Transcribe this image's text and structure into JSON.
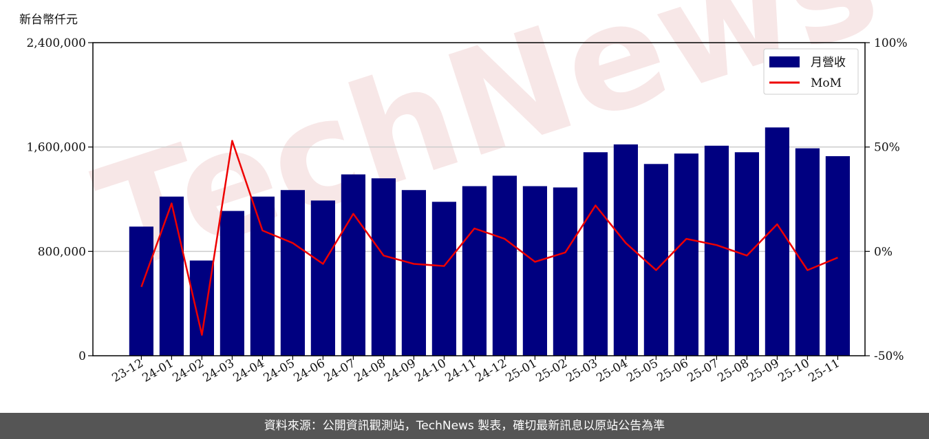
{
  "unit_label": "新台幣仟元",
  "watermark": "TechNews",
  "footer": "資料來源：公開資訊觀測站，TechNews 製表，確切最新訊息以原站公告為準",
  "colors": {
    "bar": "#000080",
    "line": "#ee0000",
    "grid": "#cccccc",
    "footer_bg": "#555555"
  },
  "chart_data": {
    "type": "bar",
    "categories": [
      "23-12",
      "24-01",
      "24-02",
      "24-03",
      "24-04",
      "24-05",
      "24-06",
      "24-07",
      "24-08",
      "24-09",
      "24-10",
      "24-11",
      "24-12",
      "25-01",
      "25-02",
      "25-03",
      "25-04",
      "25-05",
      "25-06",
      "25-07",
      "25-08",
      "25-09",
      "25-10",
      "25-11"
    ],
    "series": [
      {
        "name": "月營收",
        "axis": "left",
        "kind": "bar",
        "values": [
          990000,
          1220000,
          730000,
          1110000,
          1220000,
          1270000,
          1190000,
          1390000,
          1360000,
          1270000,
          1180000,
          1300000,
          1380000,
          1300000,
          1290000,
          1560000,
          1620000,
          1470000,
          1550000,
          1610000,
          1560000,
          1750000,
          1590000,
          1530000
        ]
      },
      {
        "name": "MoM",
        "axis": "right",
        "kind": "line",
        "values": [
          -17,
          23,
          -40,
          53,
          10,
          4,
          -6,
          18,
          -2,
          -6,
          -7,
          11,
          6,
          -5,
          -0.5,
          22,
          4,
          -9,
          6,
          3,
          -2,
          13,
          -9,
          -3
        ]
      }
    ],
    "left_axis": {
      "ylim": [
        0,
        2400000
      ],
      "ticks": [
        0,
        800000,
        1600000,
        2400000
      ],
      "tick_labels": [
        "0",
        "800,000",
        "1,600,000",
        "2,400,000"
      ]
    },
    "right_axis": {
      "ylim": [
        -50,
        100
      ],
      "ticks": [
        -50,
        0,
        50,
        100
      ],
      "tick_labels": [
        "-50%",
        "0%",
        "50%",
        "100%"
      ]
    },
    "grid": "horizontal",
    "legend_position": "top-right"
  }
}
